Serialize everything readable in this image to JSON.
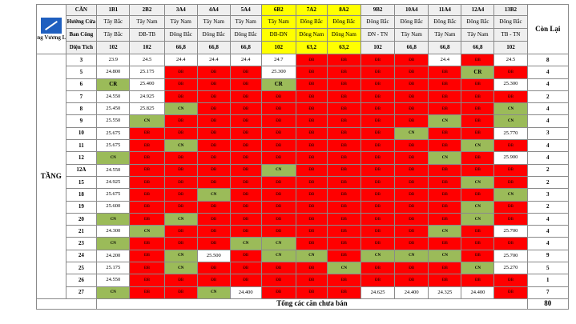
{
  "logo": {
    "text": "Hoàng Vương Land"
  },
  "header": {
    "can_label": "CĂN",
    "huong_cua_label": "Hướng Cửa",
    "ban_cong_label": "Ban Công",
    "dien_tich_label": "Diện Tích",
    "con_lai_label": "Còn Lại",
    "tang_label": "TẦNG",
    "total_label": "Tổng các căn chưa bán",
    "total_value": "80"
  },
  "units": [
    {
      "code": "1B1",
      "door": "Tây Bắc",
      "balcony": "Tây Bắc",
      "area": "102",
      "highlight": false
    },
    {
      "code": "2B2",
      "door": "Tây Nam",
      "balcony": "ĐB-TB",
      "area": "102",
      "highlight": false
    },
    {
      "code": "3A4",
      "door": "Tây Nam",
      "balcony": "Đông Bắc",
      "area": "66,8",
      "highlight": false
    },
    {
      "code": "4A4",
      "door": "Tây Nam",
      "balcony": "Đông Bắc",
      "area": "66,8",
      "highlight": false
    },
    {
      "code": "5A4",
      "door": "Tây Nam",
      "balcony": "Đông Bắc",
      "area": "66,8",
      "highlight": false
    },
    {
      "code": "6B2",
      "door": "Tây Nam",
      "balcony": "ĐB-ĐN",
      "area": "102",
      "highlight": true
    },
    {
      "code": "7A2",
      "door": "Đông Bắc",
      "balcony": "Đông Nam",
      "area": "63,2",
      "highlight": true
    },
    {
      "code": "8A2",
      "door": "Đông Bắc",
      "balcony": "Đông Nam",
      "area": "63,2",
      "highlight": true
    },
    {
      "code": "9B2",
      "door": "Đông Bắc",
      "balcony": "ĐN - TN",
      "area": "102",
      "highlight": false
    },
    {
      "code": "10A4",
      "door": "Đông Bắc",
      "balcony": "Tây Nam",
      "area": "66,8",
      "highlight": false
    },
    {
      "code": "11A4",
      "door": "Đông Bắc",
      "balcony": "Tây Nam",
      "area": "66,8",
      "highlight": false
    },
    {
      "code": "12A4",
      "door": "Đông Bắc",
      "balcony": "Tây Nam",
      "area": "66,8",
      "highlight": false
    },
    {
      "code": "13B2",
      "door": "Đông Bắc",
      "balcony": "TB - TN",
      "area": "102",
      "highlight": false
    }
  ],
  "colors": {
    "sold": "#ff0000",
    "available": "#ffffff",
    "cn": "#9bbb59",
    "highlight": "#ffff00"
  },
  "floors": [
    {
      "floor": "3",
      "remaining": "8",
      "cells": [
        [
          "w",
          "23.9"
        ],
        [
          "w",
          "24.5"
        ],
        [
          "w",
          "24.4"
        ],
        [
          "w",
          "24.4"
        ],
        [
          "w",
          "24.4"
        ],
        [
          "w",
          "24.7"
        ],
        [
          "r",
          "ĐB"
        ],
        [
          "r",
          "ĐB"
        ],
        [
          "r",
          "ĐB"
        ],
        [
          "r",
          "ĐB"
        ],
        [
          "w",
          "24.4"
        ],
        [
          "r",
          "ĐB"
        ],
        [
          "w",
          "24.5"
        ]
      ]
    },
    {
      "floor": "5",
      "remaining": "4",
      "cells": [
        [
          "w",
          "24.800"
        ],
        [
          "w",
          "25.175"
        ],
        [
          "r",
          "ĐB"
        ],
        [
          "r",
          "ĐB"
        ],
        [
          "r",
          "ĐB"
        ],
        [
          "w",
          "25.300"
        ],
        [
          "r",
          "ĐB"
        ],
        [
          "r",
          "ĐB"
        ],
        [
          "r",
          "ĐB"
        ],
        [
          "r",
          "ĐB"
        ],
        [
          "r",
          "ĐB"
        ],
        [
          "cr",
          "CR"
        ],
        [
          "r",
          "ĐB"
        ]
      ]
    },
    {
      "floor": "6",
      "remaining": "4",
      "cells": [
        [
          "cr",
          "CR"
        ],
        [
          "w",
          "25.400"
        ],
        [
          "r",
          "ĐB"
        ],
        [
          "r",
          "ĐB"
        ],
        [
          "r",
          "ĐB"
        ],
        [
          "cr",
          "CR"
        ],
        [
          "r",
          "ĐB"
        ],
        [
          "r",
          "ĐB"
        ],
        [
          "r",
          "ĐB"
        ],
        [
          "r",
          "ĐB"
        ],
        [
          "r",
          "ĐB"
        ],
        [
          "r",
          "ĐB"
        ],
        [
          "w",
          "25.300"
        ]
      ]
    },
    {
      "floor": "7",
      "remaining": "2",
      "cells": [
        [
          "w",
          "24.550"
        ],
        [
          "w",
          "24.925"
        ],
        [
          "r",
          "ĐB"
        ],
        [
          "r",
          "ĐB"
        ],
        [
          "r",
          "ĐB"
        ],
        [
          "r",
          "ĐB"
        ],
        [
          "r",
          "ĐB"
        ],
        [
          "r",
          "ĐB"
        ],
        [
          "r",
          "ĐB"
        ],
        [
          "r",
          "ĐB"
        ],
        [
          "r",
          "ĐB"
        ],
        [
          "r",
          "ĐB"
        ],
        [
          "r",
          "ĐB"
        ]
      ]
    },
    {
      "floor": "8",
      "remaining": "4",
      "cells": [
        [
          "w",
          "25.450"
        ],
        [
          "w",
          "25.825"
        ],
        [
          "g",
          "CN"
        ],
        [
          "r",
          "ĐB"
        ],
        [
          "r",
          "ĐB"
        ],
        [
          "r",
          "ĐB"
        ],
        [
          "r",
          "ĐB"
        ],
        [
          "r",
          "ĐB"
        ],
        [
          "r",
          "ĐB"
        ],
        [
          "r",
          "ĐB"
        ],
        [
          "r",
          "ĐB"
        ],
        [
          "r",
          "ĐB"
        ],
        [
          "g",
          "CN"
        ]
      ]
    },
    {
      "floor": "9",
      "remaining": "4",
      "cells": [
        [
          "w",
          "25.550"
        ],
        [
          "g",
          "CN"
        ],
        [
          "r",
          "ĐB"
        ],
        [
          "r",
          "ĐB"
        ],
        [
          "r",
          "ĐB"
        ],
        [
          "r",
          "ĐB"
        ],
        [
          "r",
          "ĐB"
        ],
        [
          "r",
          "ĐB"
        ],
        [
          "r",
          "ĐB"
        ],
        [
          "r",
          "ĐB"
        ],
        [
          "g",
          "CN"
        ],
        [
          "r",
          "ĐB"
        ],
        [
          "g",
          "CN"
        ]
      ]
    },
    {
      "floor": "10",
      "remaining": "3",
      "cells": [
        [
          "w",
          "25.675"
        ],
        [
          "r",
          "ĐB"
        ],
        [
          "r",
          "ĐB"
        ],
        [
          "r",
          "ĐB"
        ],
        [
          "r",
          "ĐB"
        ],
        [
          "r",
          "ĐB"
        ],
        [
          "r",
          "ĐB"
        ],
        [
          "r",
          "ĐB"
        ],
        [
          "r",
          "ĐB"
        ],
        [
          "g",
          "CN"
        ],
        [
          "r",
          "ĐB"
        ],
        [
          "r",
          "ĐB"
        ],
        [
          "w",
          "25.770"
        ]
      ]
    },
    {
      "floor": "11",
      "remaining": "4",
      "cells": [
        [
          "w",
          "25.675"
        ],
        [
          "r",
          "ĐB"
        ],
        [
          "g",
          "CN"
        ],
        [
          "r",
          "ĐB"
        ],
        [
          "r",
          "ĐB"
        ],
        [
          "r",
          "ĐB"
        ],
        [
          "r",
          "ĐB"
        ],
        [
          "r",
          "ĐB"
        ],
        [
          "r",
          "ĐB"
        ],
        [
          "r",
          "ĐB"
        ],
        [
          "r",
          "ĐB"
        ],
        [
          "g",
          "CN"
        ],
        [
          "r",
          "ĐB"
        ]
      ]
    },
    {
      "floor": "12",
      "remaining": "4",
      "cells": [
        [
          "g",
          "CN"
        ],
        [
          "r",
          "ĐB"
        ],
        [
          "r",
          "ĐB"
        ],
        [
          "r",
          "ĐB"
        ],
        [
          "r",
          "ĐB"
        ],
        [
          "r",
          "ĐB"
        ],
        [
          "r",
          "ĐB"
        ],
        [
          "r",
          "ĐB"
        ],
        [
          "r",
          "ĐB"
        ],
        [
          "r",
          "ĐB"
        ],
        [
          "g",
          "CN"
        ],
        [
          "r",
          "ĐB"
        ],
        [
          "w",
          "25.900"
        ]
      ]
    },
    {
      "floor": "12A",
      "remaining": "2",
      "cells": [
        [
          "w",
          "24.550"
        ],
        [
          "r",
          "ĐB"
        ],
        [
          "r",
          "ĐB"
        ],
        [
          "r",
          "ĐB"
        ],
        [
          "r",
          "ĐB"
        ],
        [
          "g",
          "CN"
        ],
        [
          "r",
          "ĐB"
        ],
        [
          "r",
          "ĐB"
        ],
        [
          "r",
          "ĐB"
        ],
        [
          "r",
          "ĐB"
        ],
        [
          "r",
          "ĐB"
        ],
        [
          "r",
          "ĐB"
        ],
        [
          "r",
          "ĐB"
        ]
      ]
    },
    {
      "floor": "15",
      "remaining": "2",
      "cells": [
        [
          "w",
          "24.925"
        ],
        [
          "r",
          "ĐB"
        ],
        [
          "r",
          "ĐB"
        ],
        [
          "r",
          "ĐB"
        ],
        [
          "r",
          "ĐB"
        ],
        [
          "r",
          "ĐB"
        ],
        [
          "r",
          "ĐB"
        ],
        [
          "r",
          "ĐB"
        ],
        [
          "r",
          "ĐB"
        ],
        [
          "r",
          "ĐB"
        ],
        [
          "r",
          "ĐB"
        ],
        [
          "g",
          "CN"
        ],
        [
          "r",
          "ĐB"
        ]
      ]
    },
    {
      "floor": "18",
      "remaining": "3",
      "cells": [
        [
          "w",
          "25.675"
        ],
        [
          "r",
          "ĐB"
        ],
        [
          "r",
          "ĐB"
        ],
        [
          "g",
          "CN"
        ],
        [
          "r",
          "ĐB"
        ],
        [
          "r",
          "ĐB"
        ],
        [
          "r",
          "ĐB"
        ],
        [
          "r",
          "ĐB"
        ],
        [
          "r",
          "ĐB"
        ],
        [
          "r",
          "ĐB"
        ],
        [
          "r",
          "ĐB"
        ],
        [
          "r",
          "ĐB"
        ],
        [
          "g",
          "CN"
        ]
      ]
    },
    {
      "floor": "19",
      "remaining": "2",
      "cells": [
        [
          "w",
          "25.600"
        ],
        [
          "r",
          "ĐB"
        ],
        [
          "r",
          "ĐB"
        ],
        [
          "r",
          "ĐB"
        ],
        [
          "r",
          "ĐB"
        ],
        [
          "r",
          "ĐB"
        ],
        [
          "r",
          "ĐB"
        ],
        [
          "r",
          "ĐB"
        ],
        [
          "r",
          "ĐB"
        ],
        [
          "r",
          "ĐB"
        ],
        [
          "r",
          "ĐB"
        ],
        [
          "g",
          "CN"
        ],
        [
          "r",
          "ĐB"
        ]
      ]
    },
    {
      "floor": "20",
      "remaining": "4",
      "cells": [
        [
          "g",
          "CN"
        ],
        [
          "r",
          "ĐB"
        ],
        [
          "g",
          "CN"
        ],
        [
          "r",
          "ĐB"
        ],
        [
          "r",
          "ĐB"
        ],
        [
          "r",
          "ĐB"
        ],
        [
          "r",
          "ĐB"
        ],
        [
          "r",
          "ĐB"
        ],
        [
          "r",
          "ĐB"
        ],
        [
          "r",
          "ĐB"
        ],
        [
          "r",
          "ĐB"
        ],
        [
          "g",
          "CN"
        ],
        [
          "r",
          "ĐB"
        ]
      ]
    },
    {
      "floor": "21",
      "remaining": "4",
      "cells": [
        [
          "w",
          "24.300"
        ],
        [
          "g",
          "CN"
        ],
        [
          "r",
          "ĐB"
        ],
        [
          "r",
          "ĐB"
        ],
        [
          "r",
          "ĐB"
        ],
        [
          "r",
          "ĐB"
        ],
        [
          "r",
          "ĐB"
        ],
        [
          "r",
          "ĐB"
        ],
        [
          "r",
          "ĐB"
        ],
        [
          "r",
          "ĐB"
        ],
        [
          "g",
          "CN"
        ],
        [
          "r",
          "ĐB"
        ],
        [
          "w",
          "25.700"
        ]
      ]
    },
    {
      "floor": "23",
      "remaining": "4",
      "cells": [
        [
          "g",
          "CN"
        ],
        [
          "r",
          "ĐB"
        ],
        [
          "r",
          "ĐB"
        ],
        [
          "r",
          "ĐB"
        ],
        [
          "g",
          "CN"
        ],
        [
          "g",
          "CN"
        ],
        [
          "r",
          "ĐB"
        ],
        [
          "r",
          "ĐB"
        ],
        [
          "r",
          "ĐB"
        ],
        [
          "r",
          "ĐB"
        ],
        [
          "r",
          "ĐB"
        ],
        [
          "r",
          "ĐB"
        ],
        [
          "r",
          "ĐB"
        ]
      ]
    },
    {
      "floor": "24",
      "remaining": "9",
      "cells": [
        [
          "w",
          "24.200"
        ],
        [
          "r",
          "ĐB"
        ],
        [
          "g",
          "CN"
        ],
        [
          "w",
          "25.500"
        ],
        [
          "r",
          "ĐB"
        ],
        [
          "g",
          "CN"
        ],
        [
          "g",
          "CN"
        ],
        [
          "r",
          "ĐB"
        ],
        [
          "g",
          "CN"
        ],
        [
          "g",
          "CN"
        ],
        [
          "g",
          "CN"
        ],
        [
          "r",
          "ĐB"
        ],
        [
          "w",
          "25.700"
        ]
      ]
    },
    {
      "floor": "25",
      "remaining": "5",
      "cells": [
        [
          "w",
          "25.175"
        ],
        [
          "r",
          "ĐB"
        ],
        [
          "g",
          "CN"
        ],
        [
          "r",
          "ĐB"
        ],
        [
          "r",
          "ĐB"
        ],
        [
          "r",
          "ĐB"
        ],
        [
          "r",
          "ĐB"
        ],
        [
          "g",
          "CN"
        ],
        [
          "r",
          "ĐB"
        ],
        [
          "r",
          "ĐB"
        ],
        [
          "r",
          "ĐB"
        ],
        [
          "g",
          "CN"
        ],
        [
          "w",
          "25.270"
        ]
      ]
    },
    {
      "floor": "26",
      "remaining": "1",
      "cells": [
        [
          "w",
          "24.550"
        ],
        [
          "r",
          "ĐB"
        ],
        [
          "r",
          "ĐB"
        ],
        [
          "r",
          "ĐB"
        ],
        [
          "r",
          "ĐB"
        ],
        [
          "r",
          "ĐB"
        ],
        [
          "r",
          "ĐB"
        ],
        [
          "r",
          "ĐB"
        ],
        [
          "r",
          "ĐB"
        ],
        [
          "r",
          "ĐB"
        ],
        [
          "r",
          "ĐB"
        ],
        [
          "r",
          "ĐB"
        ],
        [
          "r",
          "ĐB"
        ]
      ]
    },
    {
      "floor": "27",
      "remaining": "7",
      "cells": [
        [
          "g",
          "CN"
        ],
        [
          "r",
          "ĐB"
        ],
        [
          "r",
          "ĐB"
        ],
        [
          "g",
          "CN"
        ],
        [
          "w",
          "24.400"
        ],
        [
          "r",
          "ĐB"
        ],
        [
          "r",
          "ĐB"
        ],
        [
          "r",
          "ĐB"
        ],
        [
          "w",
          "24.625"
        ],
        [
          "w",
          "24.400"
        ],
        [
          "w",
          "24.325"
        ],
        [
          "w",
          "24.400"
        ],
        [
          "r",
          "ĐB"
        ]
      ]
    }
  ]
}
